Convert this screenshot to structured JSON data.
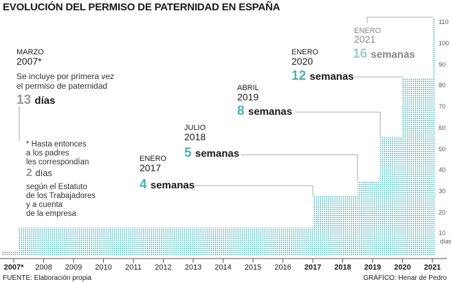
{
  "title": "EVOLUCIÓN DEL PERMISO DE PATERNIDAD  EN ESPAÑA",
  "annotations": {
    "a2007": {
      "month": "MARZO",
      "year": "2007*",
      "text1": "Se incluye por primera vez",
      "text2": "el permiso de paternidad",
      "num": "13",
      "unit": "días"
    },
    "prior": {
      "l1": "* Hasta entonces",
      "l2": "a los padres",
      "l3": "les correspondían",
      "num": "2",
      "unit": "días",
      "l4": "según el Estatuto",
      "l5": "de los Trabajadores",
      "l6": "y a cuenta",
      "l7": "de la empresa"
    },
    "a2017": {
      "month": "ENERO",
      "year": "2017",
      "num": "4",
      "unit": "semanas"
    },
    "a2018": {
      "month": "JULIO",
      "year": "2018",
      "num": "5",
      "unit": "semanas"
    },
    "a2019": {
      "month": "ABRIL",
      "year": "2019",
      "num": "8",
      "unit": "semanas"
    },
    "a2020": {
      "month": "ENERO",
      "year": "2020",
      "num": "12",
      "unit": "semanas"
    },
    "a2021": {
      "month": "ENERO",
      "year": "2021",
      "num": "16",
      "unit": "semanas"
    }
  },
  "footer": {
    "source": "FUENTE: Elaboración propia",
    "credit": "GRÁFICO: Henar de Pedro"
  },
  "colors": {
    "fill": "#4bb2b4",
    "prior_fill": "#9a9a9a",
    "axis": "#555555"
  },
  "chart_data": {
    "type": "area",
    "title": "EVOLUCIÓN DEL PERMISO DE PATERNIDAD  EN ESPAÑA",
    "step": true,
    "x_tick_labels": [
      "2007*",
      "2008",
      "2009",
      "2010",
      "2011",
      "2012",
      "2013",
      "2014",
      "2015",
      "2016",
      "2017",
      "2018",
      "2019",
      "2020",
      "2021"
    ],
    "bold_ticks": [
      "2007*",
      "2017",
      "2018",
      "2019",
      "2020",
      "2021"
    ],
    "y_tick_labels": [
      "10",
      "20",
      "30",
      "40",
      "50",
      "60",
      "70",
      "80",
      "90",
      "100",
      "110"
    ],
    "y_unit_label": "días",
    "ylim": [
      0,
      112
    ],
    "grid": false,
    "prior": {
      "from": "before 2007-03",
      "days": 2
    },
    "series": [
      {
        "points": [
          {
            "x": "2007-03",
            "days": 13
          },
          {
            "x": "2017-01",
            "days": 28
          },
          {
            "x": "2018-07",
            "days": 35
          },
          {
            "x": "2019-04",
            "days": 56
          },
          {
            "x": "2020-01",
            "days": 84
          },
          {
            "x": "2021-01",
            "days": 112
          }
        ]
      }
    ]
  }
}
